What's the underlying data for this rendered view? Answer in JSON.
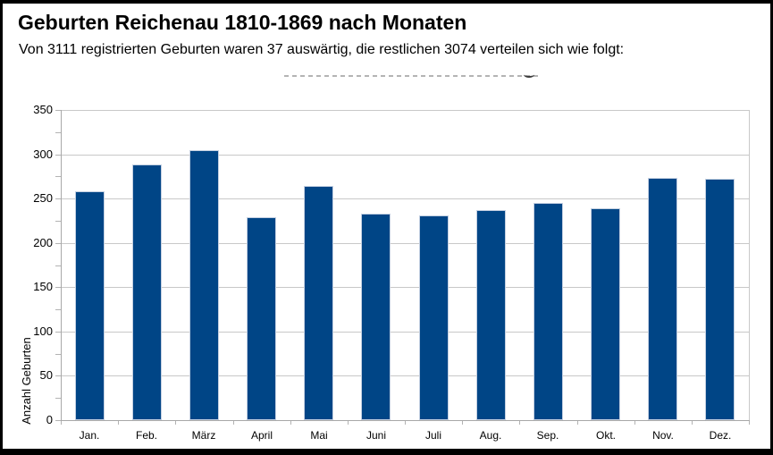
{
  "header": {
    "title": "Geburten Reichenau 1810-1869 nach Monaten",
    "subtitle": "Von 3111 registrierten Geburten waren 37 auswärtig, die restlichen 3074 verteilen sich wie folgt:"
  },
  "chart_data": {
    "type": "bar",
    "categories": [
      "Jan.",
      "Feb.",
      "März",
      "April",
      "Mai",
      "Juni",
      "Juli",
      "Aug.",
      "Sep.",
      "Okt.",
      "Nov.",
      "Dez."
    ],
    "values": [
      258,
      288,
      305,
      229,
      264,
      233,
      231,
      237,
      245,
      239,
      273,
      272
    ],
    "total_shown": 3074,
    "title": "",
    "xlabel": "",
    "ylabel": "Anzahl Geburten",
    "ylim": [
      0,
      350
    ],
    "ytick_step": 50,
    "ytick_minor_step": 25,
    "grid": true,
    "legend": "none",
    "colors": {
      "bar": "#004586",
      "bar_border": "#c3cfe1",
      "gridline": "#c8c8c8",
      "axis": "#a8a8a8",
      "tick": "#b3b3b3",
      "text": "#000000"
    }
  }
}
